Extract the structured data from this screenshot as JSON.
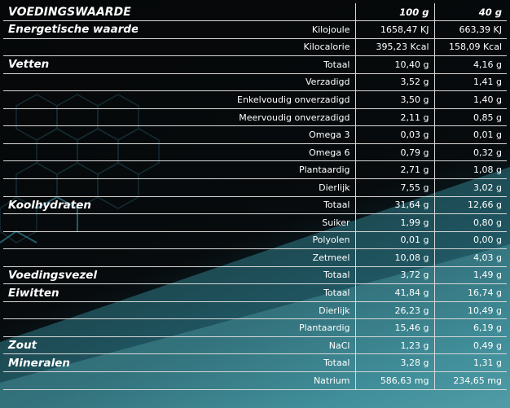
{
  "header": {
    "title": "VOEDINGSWAARDE",
    "col1": "100 g",
    "col2": "40 g"
  },
  "rows": [
    {
      "cat": "Energetische waarde",
      "sub": "Kilojoule",
      "v1": "1658,47 KJ",
      "v2": "663,39 KJ"
    },
    {
      "cat": "",
      "sub": "Kilocalorie",
      "v1": "395,23 Kcal",
      "v2": "158,09 Kcal"
    },
    {
      "cat": "Vetten",
      "sub": "Totaal",
      "v1": "10,40 g",
      "v2": "4,16 g"
    },
    {
      "cat": "",
      "sub": "Verzadigd",
      "v1": "3,52 g",
      "v2": "1,41 g"
    },
    {
      "cat": "",
      "sub": "Enkelvoudig onverzadigd",
      "v1": "3,50 g",
      "v2": "1,40 g"
    },
    {
      "cat": "",
      "sub": "Meervoudig onverzadigd",
      "v1": "2,11 g",
      "v2": "0,85 g"
    },
    {
      "cat": "",
      "sub": "Omega 3",
      "v1": "0,03 g",
      "v2": "0,01 g"
    },
    {
      "cat": "",
      "sub": "Omega 6",
      "v1": "0,79 g",
      "v2": "0,32 g"
    },
    {
      "cat": "",
      "sub": "Plantaardig",
      "v1": "2,71 g",
      "v2": "1,08 g"
    },
    {
      "cat": "",
      "sub": "Dierlijk",
      "v1": "7,55 g",
      "v2": "3,02 g"
    },
    {
      "cat": "Koolhydraten",
      "sub": "Totaal",
      "v1": "31,64 g",
      "v2": "12,66 g"
    },
    {
      "cat": "",
      "sub": "Suiker",
      "v1": "1,99 g",
      "v2": "0,80 g"
    },
    {
      "cat": "",
      "sub": "Polyolen",
      "v1": "0,01 g",
      "v2": "0,00 g"
    },
    {
      "cat": "",
      "sub": "Zetmeel",
      "v1": "10,08 g",
      "v2": "4,03 g"
    },
    {
      "cat": "Voedingsvezel",
      "sub": "Totaal",
      "v1": "3,72 g",
      "v2": "1,49 g"
    },
    {
      "cat": "Eiwitten",
      "sub": "Totaal",
      "v1": "41,84 g",
      "v2": "16,74 g"
    },
    {
      "cat": "",
      "sub": "Dierlijk",
      "v1": "26,23 g",
      "v2": "10,49 g"
    },
    {
      "cat": "",
      "sub": "Plantaardig",
      "v1": "15,46 g",
      "v2": "6,19 g"
    },
    {
      "cat": "Zout",
      "sub": "NaCl",
      "v1": "1,23 g",
      "v2": "0,49 g"
    },
    {
      "cat": "Mineralen",
      "sub": "Totaal",
      "v1": "3,28 g",
      "v2": "1,31 g"
    },
    {
      "cat": "",
      "sub": "Natrium",
      "v1": "586,63 mg",
      "v2": "234,65 mg"
    }
  ]
}
